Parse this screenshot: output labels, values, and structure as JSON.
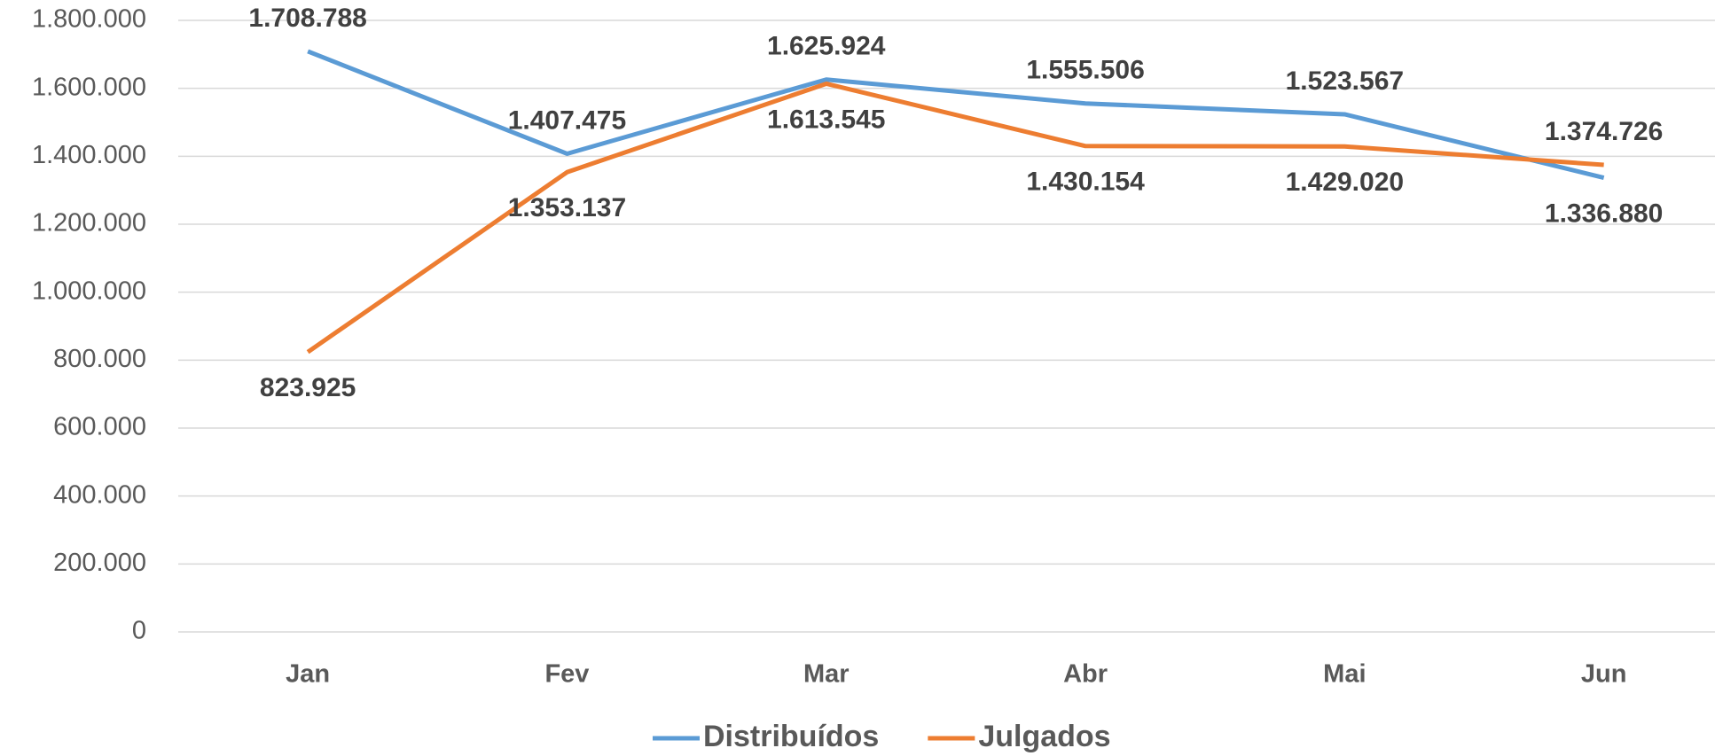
{
  "chart_data": {
    "type": "line",
    "categories": [
      "Jan",
      "Fev",
      "Mar",
      "Abr",
      "Mai",
      "Jun"
    ],
    "series": [
      {
        "name": "Distribuídos",
        "color": "#5b9bd5",
        "values": [
          1708788,
          1407475,
          1625924,
          1555506,
          1523567,
          1336880
        ],
        "value_labels": [
          "1.708.788",
          "1.407.475",
          "1.625.924",
          "1.555.506",
          "1.523.567",
          "1.336.880"
        ]
      },
      {
        "name": "Julgados",
        "color": "#ed7d31",
        "values": [
          823925,
          1353137,
          1613545,
          1430154,
          1429020,
          1374726
        ],
        "value_labels": [
          "823.925",
          "1.353.137",
          "1.613.545",
          "1.430.154",
          "1.429.020",
          "1.374.726"
        ]
      }
    ],
    "ylim": [
      0,
      1800000
    ],
    "yticks": [
      0,
      {
        "value": 200000,
        "label": "200.000"
      },
      {
        "value": 400000,
        "label": "400.000"
      },
      {
        "value": 600000,
        "label": "600.000"
      },
      {
        "value": 800000,
        "label": "800.000"
      },
      {
        "value": 1000000,
        "label": "1.000.000"
      },
      {
        "value": 1200000,
        "label": "1.200.000"
      },
      {
        "value": 1400000,
        "label": "1.400.000"
      },
      {
        "value": 1600000,
        "label": "1.600.000"
      },
      {
        "value": 1800000,
        "label": "1.800.000"
      }
    ],
    "grid": true,
    "legend": "bottom"
  }
}
